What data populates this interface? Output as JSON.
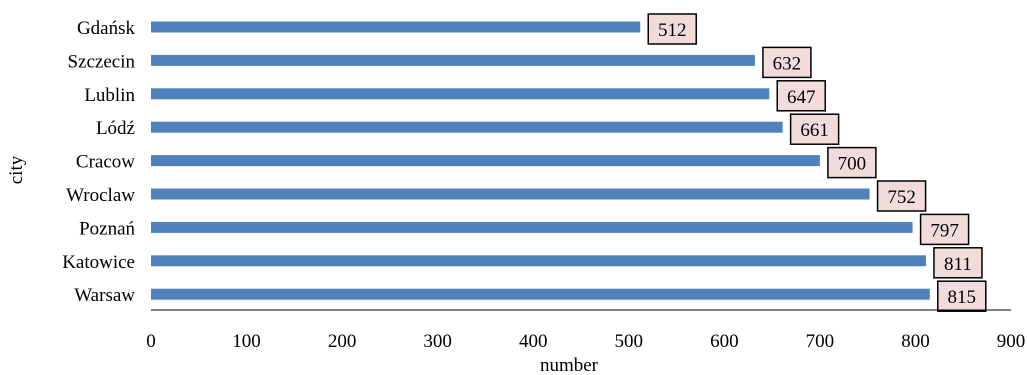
{
  "chart_data": {
    "type": "bar",
    "orientation": "horizontal",
    "categories": [
      "Gdańsk",
      "Szczecin",
      "Lublin",
      "Lódź",
      "Cracow",
      "Wroclaw",
      "Poznań",
      "Katowice",
      "Warsaw"
    ],
    "values": [
      512,
      632,
      647,
      661,
      700,
      752,
      797,
      811,
      815
    ],
    "xlabel": "number",
    "ylabel": "city",
    "xlim": [
      0,
      900
    ],
    "xticks": [
      0,
      100,
      200,
      300,
      400,
      500,
      600,
      700,
      800,
      900
    ],
    "grid": false,
    "legend": "none",
    "data_labels": true,
    "colors": {
      "bar": "#4f81bd",
      "label_fill": "#f2dcdb",
      "label_border": "#000000",
      "axis": "#000000"
    }
  }
}
